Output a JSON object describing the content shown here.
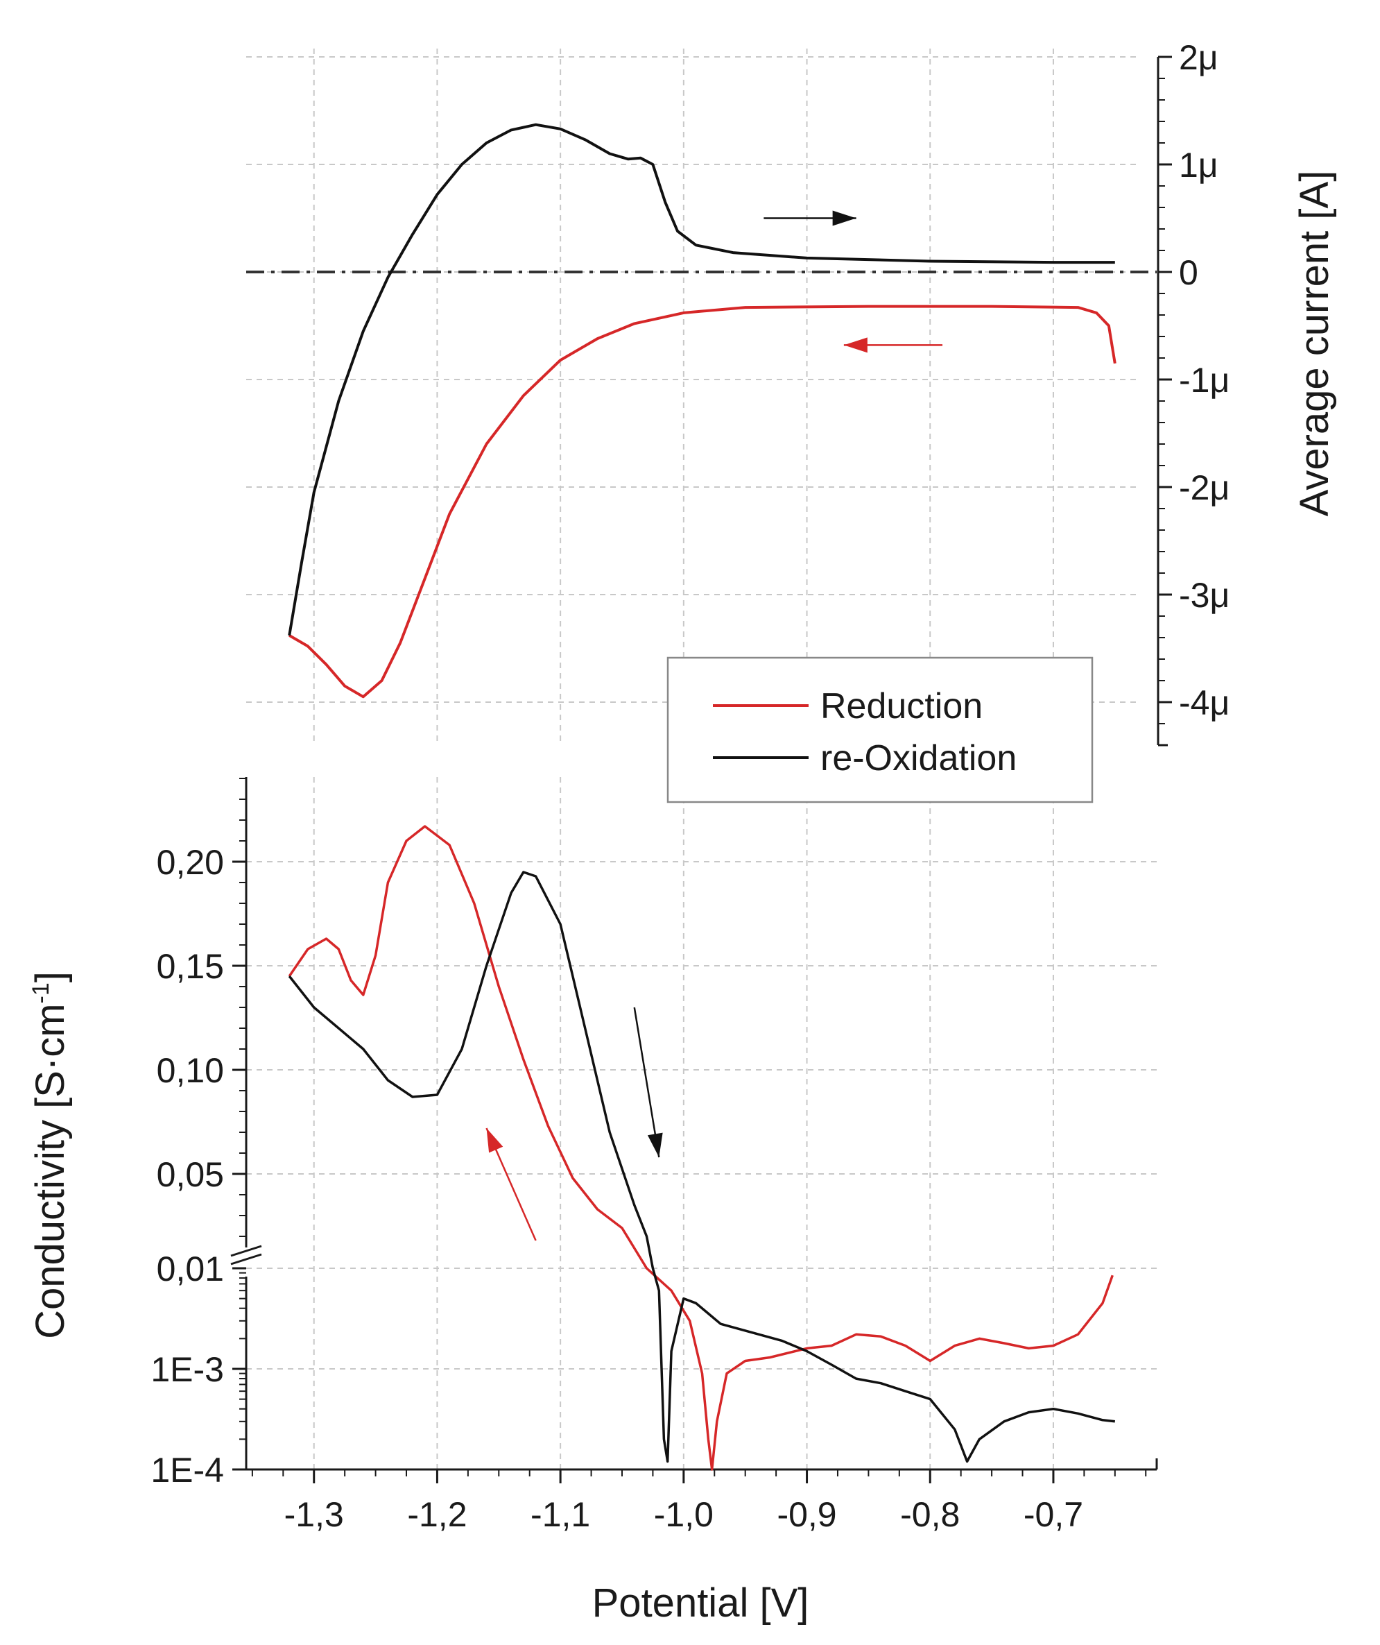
{
  "chart_data": [
    {
      "panel": "top",
      "type": "line",
      "ylabel": "Average current [A]",
      "x_range": [
        -1.355,
        -0.615
      ],
      "ylim": [
        -4.4e-06,
        2e-06
      ],
      "y_ticks": [
        2e-06,
        1e-06,
        0,
        -1e-06,
        -2e-06,
        -3e-06,
        -4e-06
      ],
      "y_tick_labels": [
        "2μ",
        "1μ",
        "0",
        "-1μ",
        "-2μ",
        "-3μ",
        "-4μ"
      ],
      "y_axis_side": "right",
      "grid": true,
      "zero_line": {
        "style": "dash-dot",
        "y": 0
      },
      "series": [
        {
          "name": "Reduction",
          "color": "#d62728",
          "points": [
            [
              -0.65,
              -8.5e-07
            ],
            [
              -0.655,
              -5e-07
            ],
            [
              -0.665,
              -3.8e-07
            ],
            [
              -0.68,
              -3.3e-07
            ],
            [
              -0.75,
              -3.2e-07
            ],
            [
              -0.85,
              -3.2e-07
            ],
            [
              -0.95,
              -3.3e-07
            ],
            [
              -1.0,
              -3.8e-07
            ],
            [
              -1.04,
              -4.8e-07
            ],
            [
              -1.07,
              -6.2e-07
            ],
            [
              -1.1,
              -8.2e-07
            ],
            [
              -1.13,
              -1.15e-06
            ],
            [
              -1.16,
              -1.6e-06
            ],
            [
              -1.19,
              -2.25e-06
            ],
            [
              -1.21,
              -2.85e-06
            ],
            [
              -1.23,
              -3.45e-06
            ],
            [
              -1.245,
              -3.8e-06
            ],
            [
              -1.26,
              -3.95e-06
            ],
            [
              -1.275,
              -3.85e-06
            ],
            [
              -1.29,
              -3.65e-06
            ],
            [
              -1.305,
              -3.48e-06
            ],
            [
              -1.32,
              -3.38e-06
            ]
          ]
        },
        {
          "name": "re-Oxidation",
          "color": "#111111",
          "points": [
            [
              -1.32,
              -3.38e-06
            ],
            [
              -1.31,
              -2.7e-06
            ],
            [
              -1.3,
              -2.05e-06
            ],
            [
              -1.28,
              -1.2e-06
            ],
            [
              -1.26,
              -5.5e-07
            ],
            [
              -1.24,
              -5e-08
            ],
            [
              -1.22,
              3.5e-07
            ],
            [
              -1.2,
              7.2e-07
            ],
            [
              -1.18,
              1e-06
            ],
            [
              -1.16,
              1.2e-06
            ],
            [
              -1.14,
              1.32e-06
            ],
            [
              -1.12,
              1.37e-06
            ],
            [
              -1.1,
              1.33e-06
            ],
            [
              -1.08,
              1.23e-06
            ],
            [
              -1.06,
              1.1e-06
            ],
            [
              -1.045,
              1.05e-06
            ],
            [
              -1.035,
              1.06e-06
            ],
            [
              -1.025,
              1e-06
            ],
            [
              -1.015,
              6.5e-07
            ],
            [
              -1.005,
              3.8e-07
            ],
            [
              -0.99,
              2.5e-07
            ],
            [
              -0.96,
              1.8e-07
            ],
            [
              -0.9,
              1.3e-07
            ],
            [
              -0.8,
              1e-07
            ],
            [
              -0.7,
              9e-08
            ],
            [
              -0.65,
              9e-08
            ]
          ]
        }
      ],
      "annotations": [
        {
          "type": "arrow",
          "color": "#111111",
          "direction": "right",
          "from": [
            -0.935,
            5e-07
          ],
          "to": [
            -0.86,
            5e-07
          ]
        },
        {
          "type": "arrow",
          "color": "#d62728",
          "direction": "left",
          "from": [
            -0.79,
            -6.8e-07
          ],
          "to": [
            -0.87,
            -6.8e-07
          ]
        }
      ]
    },
    {
      "panel": "bottom",
      "type": "line",
      "xlabel": "Potential  [V]",
      "ylabel": "Conductivity  [S·cm⁻¹]",
      "x_range": [
        -1.355,
        -0.615
      ],
      "x_ticks": [
        -1.3,
        -1.2,
        -1.1,
        -1.0,
        -0.9,
        -0.8,
        -0.7
      ],
      "x_tick_labels": [
        "-1,3",
        "-1,2",
        "-1,1",
        "-1,0",
        "-0,9",
        "-0,8",
        "-0,7"
      ],
      "y_axis_broken": true,
      "y_upper": {
        "scale": "linear",
        "range": [
          0.01,
          0.24
        ],
        "ticks": [
          0.05,
          0.1,
          0.15,
          0.2
        ],
        "tick_labels": [
          "0,05",
          "0,10",
          "0,15",
          "0,20"
        ]
      },
      "y_lower": {
        "scale": "log",
        "range": [
          0.0001,
          0.01
        ],
        "ticks": [
          0.0001,
          0.001,
          0.01
        ],
        "tick_labels": [
          "1E-4",
          "1E-3",
          "0,01"
        ]
      },
      "grid": true,
      "series": [
        {
          "name": "Reduction",
          "color": "#d62728",
          "points": [
            [
              -1.32,
              0.145
            ],
            [
              -1.305,
              0.158
            ],
            [
              -1.29,
              0.163
            ],
            [
              -1.28,
              0.158
            ],
            [
              -1.27,
              0.143
            ],
            [
              -1.26,
              0.136
            ],
            [
              -1.25,
              0.155
            ],
            [
              -1.24,
              0.19
            ],
            [
              -1.225,
              0.21
            ],
            [
              -1.21,
              0.217
            ],
            [
              -1.19,
              0.208
            ],
            [
              -1.17,
              0.18
            ],
            [
              -1.15,
              0.14
            ],
            [
              -1.13,
              0.105
            ],
            [
              -1.11,
              0.073
            ],
            [
              -1.09,
              0.048
            ],
            [
              -1.07,
              0.033
            ],
            [
              -1.05,
              0.024
            ],
            [
              -1.03,
              0.0
            ],
            [
              -1.01,
              0.006
            ],
            [
              -0.995,
              0.003
            ],
            [
              -0.985,
              0.0009
            ],
            [
              -0.98,
              0.0002
            ],
            [
              -0.977,
              0.0001
            ],
            [
              -0.973,
              0.0003
            ],
            [
              -0.965,
              0.0009
            ],
            [
              -0.95,
              0.0012
            ],
            [
              -0.93,
              0.0013
            ],
            [
              -0.9,
              0.0016
            ],
            [
              -0.88,
              0.0017
            ],
            [
              -0.86,
              0.0022
            ],
            [
              -0.84,
              0.0021
            ],
            [
              -0.82,
              0.0017
            ],
            [
              -0.8,
              0.0012
            ],
            [
              -0.78,
              0.0017
            ],
            [
              -0.76,
              0.002
            ],
            [
              -0.74,
              0.0018
            ],
            [
              -0.72,
              0.0016
            ],
            [
              -0.7,
              0.0017
            ],
            [
              -0.68,
              0.0022
            ],
            [
              -0.66,
              0.0045
            ],
            [
              -0.652,
              0.0085
            ]
          ]
        },
        {
          "name": "re-Oxidation",
          "color": "#111111",
          "points": [
            [
              -1.32,
              0.145
            ],
            [
              -1.3,
              0.13
            ],
            [
              -1.28,
              0.12
            ],
            [
              -1.26,
              0.11
            ],
            [
              -1.24,
              0.095
            ],
            [
              -1.22,
              0.087
            ],
            [
              -1.2,
              0.088
            ],
            [
              -1.18,
              0.11
            ],
            [
              -1.16,
              0.15
            ],
            [
              -1.14,
              0.185
            ],
            [
              -1.13,
              0.195
            ],
            [
              -1.12,
              0.193
            ],
            [
              -1.1,
              0.17
            ],
            [
              -1.08,
              0.12
            ],
            [
              -1.06,
              0.07
            ],
            [
              -1.04,
              0.035
            ],
            [
              -1.03,
              0.02
            ],
            [
              -1.025,
              0.01
            ],
            [
              -1.02,
              0.006
            ],
            [
              -1.016,
              0.0002
            ],
            [
              -1.013,
              0.00012
            ],
            [
              -1.01,
              0.0015
            ],
            [
              -1.0,
              0.005
            ],
            [
              -0.99,
              0.0045
            ],
            [
              -0.97,
              0.0028
            ],
            [
              -0.95,
              0.0024
            ],
            [
              -0.92,
              0.0019
            ],
            [
              -0.9,
              0.0015
            ],
            [
              -0.88,
              0.0011
            ],
            [
              -0.86,
              0.0008
            ],
            [
              -0.84,
              0.00072
            ],
            [
              -0.82,
              0.0006
            ],
            [
              -0.8,
              0.0005
            ],
            [
              -0.78,
              0.00025
            ],
            [
              -0.77,
              0.00012
            ],
            [
              -0.76,
              0.0002
            ],
            [
              -0.74,
              0.0003
            ],
            [
              -0.72,
              0.00037
            ],
            [
              -0.7,
              0.0004
            ],
            [
              -0.68,
              0.00036
            ],
            [
              -0.66,
              0.00031
            ],
            [
              -0.65,
              0.0003
            ]
          ]
        }
      ],
      "annotations": [
        {
          "type": "arrow",
          "color": "#111111",
          "direction": "down",
          "from": [
            -1.04,
            0.13
          ],
          "to": [
            -1.02,
            0.058
          ]
        },
        {
          "type": "arrow",
          "color": "#d62728",
          "direction": "up",
          "from": [
            -1.12,
            0.018
          ],
          "to": [
            -1.16,
            0.072
          ]
        }
      ]
    }
  ],
  "legend": {
    "placement": "center-right, between panels",
    "entries": [
      {
        "label": "Reduction",
        "color": "#d62728"
      },
      {
        "label": "re-Oxidation",
        "color": "#111111"
      }
    ]
  },
  "text": {
    "top_ylabel": "Average current [A]",
    "bottom_ylabel_main": "Conductivity  [S·cm",
    "bottom_ylabel_sup": "-1",
    "bottom_ylabel_end": "]",
    "xlabel": "Potential  [V]"
  }
}
